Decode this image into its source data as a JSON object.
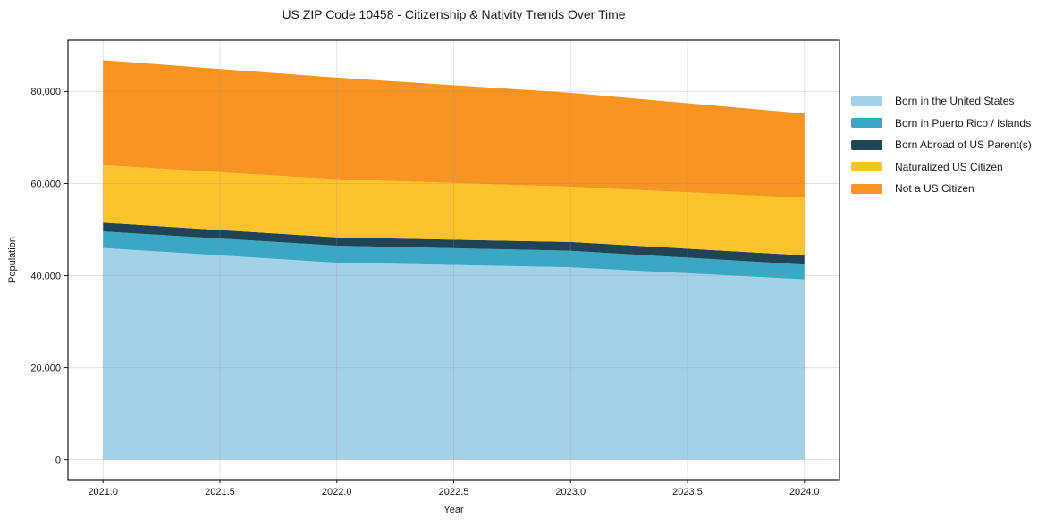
{
  "chart_data": {
    "type": "area",
    "stacked": true,
    "title": "US ZIP Code 10458 - Citizenship & Nativity Trends Over Time",
    "xlabel": "Year",
    "ylabel": "Population",
    "x": [
      2021,
      2022,
      2023,
      2024
    ],
    "xlim": [
      2020.85,
      2024.15
    ],
    "ylim": [
      -4340,
      91140
    ],
    "x_ticks": [
      {
        "value": 2021.0,
        "label": "2021.0"
      },
      {
        "value": 2021.5,
        "label": "2021.5"
      },
      {
        "value": 2022.0,
        "label": "2022.0"
      },
      {
        "value": 2022.5,
        "label": "2022.5"
      },
      {
        "value": 2023.0,
        "label": "2023.0"
      },
      {
        "value": 2023.5,
        "label": "2023.5"
      },
      {
        "value": 2024.0,
        "label": "2024.0"
      }
    ],
    "y_ticks": [
      {
        "value": 0,
        "label": "0"
      },
      {
        "value": 20000,
        "label": "20,000"
      },
      {
        "value": 40000,
        "label": "40,000"
      },
      {
        "value": 60000,
        "label": "60,000"
      },
      {
        "value": 80000,
        "label": "80,000"
      }
    ],
    "grid": true,
    "legend_position": "right",
    "series": [
      {
        "name": "Born in the United States",
        "color": "#a3d1e8",
        "values": [
          46000,
          42800,
          41800,
          39200
        ]
      },
      {
        "name": "Born in Puerto Rico / Islands",
        "color": "#3aa7c3",
        "values": [
          3600,
          3700,
          3600,
          3200
        ]
      },
      {
        "name": "Born Abroad of US Parent(s)",
        "color": "#1e4456",
        "values": [
          1900,
          1800,
          1900,
          2000
        ]
      },
      {
        "name": "Naturalized US Citizen",
        "color": "#fcc32a",
        "values": [
          12500,
          12600,
          12000,
          12500
        ]
      },
      {
        "name": "Not a US Citizen",
        "color": "#f89422",
        "values": [
          22800,
          22100,
          20400,
          18300
        ]
      }
    ],
    "totals": [
      86800,
      83000,
      79700,
      75200
    ],
    "colors": {
      "frame": "#1a1a1a",
      "gridline": "rgba(150,150,150,0.28)",
      "background": "#ffffff"
    }
  }
}
